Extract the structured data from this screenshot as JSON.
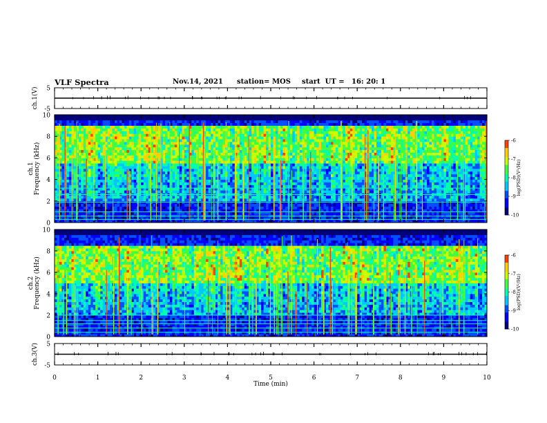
{
  "header": {
    "title": "VLF Spectra",
    "date": "Nov.14, 2021",
    "station": "station= MOS",
    "start_time": "start  UT =   16: 20: 1"
  },
  "colors": {
    "colormap": [
      "#00007a",
      "#0000ff",
      "#0050ff",
      "#00c8ff",
      "#00ffb0",
      "#40ff40",
      "#c8ff00",
      "#ffd000",
      "#ff4000",
      "#ff0000",
      "#ffffff"
    ],
    "axis": "#000000"
  },
  "chart_data": [
    {
      "type": "line",
      "name": "ch1-waveform",
      "ylabel": "ch.1(V)",
      "ylim": [
        -5,
        5
      ],
      "yticks": [
        "5",
        "-5"
      ],
      "xlim": [
        0,
        10
      ],
      "level": 0
    },
    {
      "type": "heatmap",
      "name": "ch1-spectrogram",
      "ylabel_lines": [
        "ch.1",
        "Frequency (kHz)"
      ],
      "ylim": [
        0,
        10
      ],
      "yticks": [
        "0",
        "2",
        "4",
        "6",
        "8",
        "10"
      ],
      "xlim": [
        0,
        10
      ],
      "colorbar": {
        "label": "log(PSD)(V²/Hz)",
        "range": [
          -10,
          -6
        ],
        "ticks": [
          "-6",
          "-7",
          "-8",
          "-9",
          "-10"
        ]
      },
      "dominant_band_khz": [
        5.5,
        9.0
      ],
      "persistent_lines_khz": [
        0.3,
        0.6,
        1.0,
        1.9,
        2.6,
        3.2
      ]
    },
    {
      "type": "heatmap",
      "name": "ch2-spectrogram",
      "ylabel_lines": [
        "ch.2",
        "Frequency (kHz)"
      ],
      "ylim": [
        0,
        10
      ],
      "yticks": [
        "0",
        "2",
        "4",
        "6",
        "8",
        "10"
      ],
      "xlim": [
        0,
        10
      ],
      "colorbar": {
        "label": "log(PSD)(V²/Hz)",
        "range": [
          -10,
          -6
        ],
        "ticks": [
          "-6",
          "-7",
          "-8",
          "-9",
          "-10"
        ]
      },
      "dominant_band_khz": [
        5.0,
        8.5
      ],
      "persistent_lines_khz": [
        0.4,
        0.8,
        1.2,
        1.5,
        2.0
      ]
    },
    {
      "type": "line",
      "name": "ch3-waveform",
      "ylabel": "ch.3(V)",
      "ylim": [
        -5,
        5
      ],
      "yticks": [
        "5",
        "-5"
      ],
      "xlim": [
        0,
        10
      ],
      "level": 0
    }
  ],
  "x_axis": {
    "label": "Time (min)",
    "ticks": [
      "0",
      "1",
      "2",
      "3",
      "4",
      "5",
      "6",
      "7",
      "8",
      "9",
      "10"
    ]
  }
}
